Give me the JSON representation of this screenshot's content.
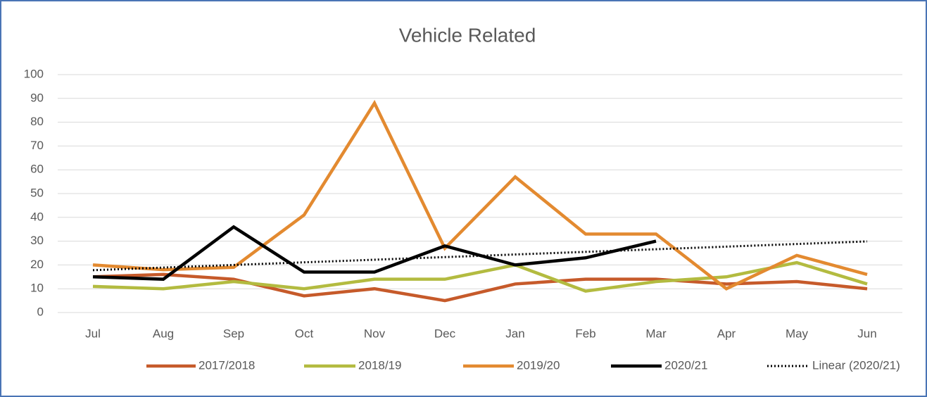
{
  "chart_data": {
    "type": "line",
    "title": "Vehicle Related",
    "categories": [
      "Jul",
      "Aug",
      "Sep",
      "Oct",
      "Nov",
      "Dec",
      "Jan",
      "Feb",
      "Mar",
      "Apr",
      "May",
      "Jun"
    ],
    "series": [
      {
        "name": "2017/2018",
        "color": "#c65a2a",
        "values": [
          15,
          16,
          14,
          7,
          10,
          5,
          12,
          14,
          14,
          12,
          13,
          10
        ]
      },
      {
        "name": "2018/19",
        "color": "#b3bb40",
        "values": [
          11,
          10,
          13,
          10,
          14,
          14,
          20,
          9,
          13,
          15,
          21,
          12
        ]
      },
      {
        "name": "2019/20",
        "color": "#e38a30",
        "values": [
          20,
          18,
          19,
          41,
          88,
          27,
          57,
          33,
          33,
          10,
          24,
          16
        ]
      },
      {
        "name": "2020/21",
        "color": "#000000",
        "values": [
          15,
          14,
          36,
          17,
          17,
          28,
          20,
          23,
          30,
          null,
          null,
          null
        ]
      },
      {
        "name": "Linear (2020/21)",
        "color": "#000000",
        "dash": "dotted",
        "values": [
          17.8,
          18.9,
          20.0,
          21.1,
          22.2,
          23.3,
          24.4,
          25.5,
          26.6,
          27.7,
          28.8,
          29.9
        ]
      }
    ],
    "ylim": [
      0,
      100
    ],
    "yticks": [
      0,
      10,
      20,
      30,
      40,
      50,
      60,
      70,
      80,
      90,
      100
    ],
    "grid": true,
    "legend": "bottom"
  }
}
